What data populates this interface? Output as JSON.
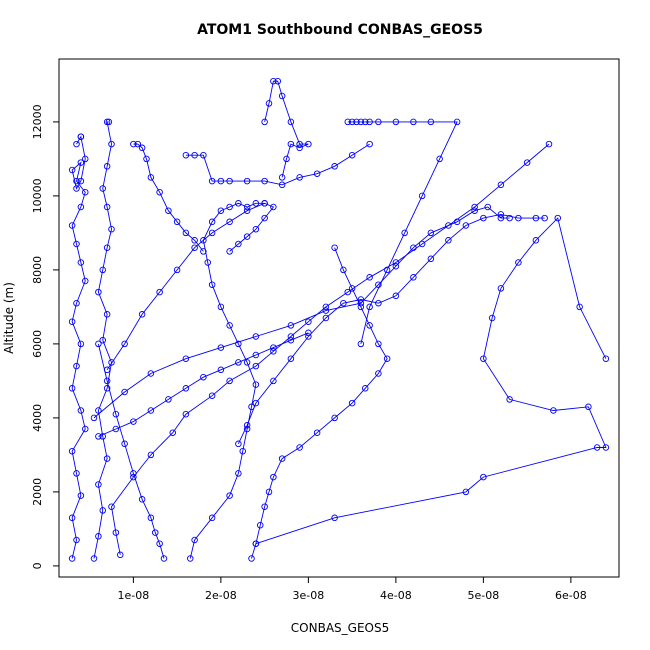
{
  "chart_data": {
    "type": "line",
    "title": "ATOM1 Southbound CONBAS_GEOS5",
    "xlabel": "CONBAS_GEOS5",
    "ylabel": "Altitude (m)",
    "xlim": [
      1.5e-09,
      6.55e-08
    ],
    "ylim": [
      -300,
      13700
    ],
    "x_ticks": [
      1e-08,
      2e-08,
      3e-08,
      4e-08,
      5e-08,
      6e-08
    ],
    "x_tick_labels": [
      "1e-08",
      "2e-08",
      "3e-08",
      "4e-08",
      "5e-08",
      "6e-08"
    ],
    "y_ticks": [
      0,
      2000,
      4000,
      6000,
      8000,
      10000,
      12000
    ],
    "y_tick_labels": [
      "0",
      "2000",
      "4000",
      "6000",
      "8000",
      "10000",
      "12000"
    ],
    "series_color": "#0000ff",
    "series": [
      {
        "x": [
          3e-09,
          3.5e-09,
          3e-09,
          4e-09,
          3.5e-09,
          3e-09,
          4.5e-09,
          4e-09,
          3e-09,
          3.5e-09,
          4e-09,
          3e-09,
          3.5e-09,
          4.5e-09,
          4e-09,
          3.5e-09,
          3e-09,
          4e-09,
          4.5e-09,
          3.5e-09,
          4e-09,
          3e-09,
          3.5e-09,
          4e-09,
          4.5e-09,
          4e-09,
          3.5e-09,
          4e-09
        ],
        "y": [
          200,
          700,
          1300,
          1900,
          2500,
          3100,
          3700,
          4200,
          4800,
          5400,
          6000,
          6600,
          7100,
          7700,
          8200,
          8700,
          9200,
          9700,
          10100,
          10400,
          10900,
          10700,
          10200,
          10400,
          11000,
          11600,
          11400,
          11600
        ]
      },
      {
        "x": [
          5.5e-09,
          6e-09,
          6.5e-09,
          6e-09,
          7e-09,
          6.5e-09,
          6e-09,
          7e-09,
          7.5e-09,
          6.5e-09,
          7e-09,
          6e-09,
          6.5e-09,
          7e-09,
          7.5e-09,
          7e-09,
          6.5e-09,
          7e-09,
          7.5e-09,
          7e-09,
          7.2e-09
        ],
        "y": [
          200,
          800,
          1500,
          2200,
          2900,
          3500,
          4200,
          4800,
          5500,
          6100,
          6800,
          7400,
          8000,
          8600,
          9100,
          9700,
          10200,
          10800,
          11400,
          12000,
          12000
        ]
      },
      {
        "x": [
          8.5e-09,
          8e-09,
          7.5e-09,
          1e-08,
          1.2e-08,
          1.45e-08,
          1.6e-08,
          1.9e-08,
          2.1e-08,
          2.4e-08,
          2.6e-08,
          2.8e-08,
          3e-08,
          3.2e-08,
          3.45e-08,
          3.7e-08,
          4e-08,
          4.3e-08,
          4.6e-08,
          4.9e-08,
          5.2e-08,
          5.5e-08,
          5.75e-08
        ],
        "y": [
          300,
          900,
          1600,
          2400,
          3000,
          3600,
          4100,
          4600,
          5000,
          5400,
          5800,
          6200,
          6600,
          7000,
          7400,
          7800,
          8200,
          8700,
          9200,
          9700,
          10300,
          10900,
          11400
        ]
      },
      {
        "x": [
          1.35e-08,
          1.3e-08,
          1.25e-08,
          1.2e-08,
          1.1e-08,
          1e-08,
          9e-09,
          8e-09,
          7e-09,
          6e-09
        ],
        "y": [
          200,
          600,
          900,
          1300,
          1800,
          2500,
          3300,
          4100,
          5000,
          6000
        ]
      },
      {
        "x": [
          1.65e-08,
          1.7e-08,
          1.9e-08,
          2.1e-08,
          2.2e-08,
          2.25e-08,
          2.3e-08,
          2.35e-08,
          2.4e-08,
          2.3e-08,
          2.2e-08,
          2.1e-08,
          2e-08,
          1.9e-08,
          1.85e-08,
          1.8e-08,
          1.9e-08,
          2e-08,
          2.1e-08,
          2.2e-08,
          2.3e-08,
          2.4e-08,
          2.5e-08,
          2.6e-08,
          2.5e-08,
          2.4e-08,
          2.3e-08,
          2.2e-08,
          2.1e-08
        ],
        "y": [
          200,
          700,
          1300,
          1900,
          2500,
          3100,
          3700,
          4300,
          4900,
          5500,
          6000,
          6500,
          7000,
          7600,
          8200,
          8800,
          9300,
          9600,
          9700,
          9800,
          9700,
          9800,
          9800,
          9700,
          9400,
          9100,
          8900,
          8700,
          8500
        ]
      },
      {
        "x": [
          2.35e-08,
          2.4e-08,
          2.45e-08,
          2.5e-08,
          2.55e-08,
          2.6e-08,
          2.7e-08,
          2.9e-08,
          3.1e-08,
          3.3e-08,
          3.5e-08,
          3.65e-08,
          3.8e-08,
          3.9e-08,
          3.8e-08,
          3.7e-08,
          3.6e-08,
          3.5e-08,
          3.4e-08,
          3.3e-08
        ],
        "y": [
          200,
          600,
          1100,
          1600,
          2000,
          2400,
          2900,
          3200,
          3600,
          4000,
          4400,
          4800,
          5200,
          5600,
          6000,
          6500,
          7000,
          7500,
          8000,
          8600
        ]
      },
      {
        "x": [
          2.4e-08,
          3.3e-08,
          4.8e-08,
          5e-08,
          6.3e-08,
          6.4e-08,
          6.2e-08,
          5.8e-08,
          5.3e-08,
          5e-08,
          5.1e-08,
          5.2e-08,
          5.4e-08,
          5.6e-08,
          5.85e-08,
          6.1e-08,
          6.4e-08
        ],
        "y": [
          600,
          1300,
          2000,
          2400,
          3200,
          3200,
          4300,
          4200,
          4500,
          5600,
          6700,
          7500,
          8200,
          8800,
          9400,
          7000,
          5600
        ]
      },
      {
        "x": [
          2.2e-08,
          2.3e-08,
          2.4e-08,
          2.6e-08,
          2.8e-08,
          3e-08,
          3.2e-08,
          3.4e-08,
          3.6e-08,
          3.8e-08,
          4e-08,
          4.2e-08,
          4.4e-08,
          4.6e-08,
          4.8e-08,
          5e-08,
          5.2e-08,
          5.4e-08,
          5.6e-08,
          5.7e-08
        ],
        "y": [
          3300,
          3800,
          4400,
          5000,
          5600,
          6200,
          6700,
          7100,
          7200,
          7100,
          7300,
          7800,
          8300,
          8800,
          9200,
          9400,
          9500,
          9400,
          9400,
          9400
        ]
      },
      {
        "x": [
          2.5e-08,
          2.55e-08,
          2.6e-08,
          2.65e-08,
          2.7e-08,
          2.8e-08,
          2.9e-08,
          3e-08,
          2.9e-08,
          2.8e-08,
          2.75e-08,
          2.7e-08
        ],
        "y": [
          12000,
          12500,
          13100,
          13100,
          12700,
          12000,
          11400,
          11400,
          11300,
          11400,
          11000,
          10500
        ]
      },
      {
        "x": [
          3.45e-08,
          3.5e-08,
          3.55e-08,
          3.6e-08,
          3.65e-08,
          3.7e-08,
          3.8e-08,
          4e-08,
          4.2e-08,
          4.4e-08,
          4.7e-08,
          4.5e-08,
          4.3e-08,
          4.1e-08,
          3.9e-08,
          3.7e-08,
          3.6e-08
        ],
        "y": [
          12000,
          12000,
          12000,
          12000,
          12000,
          12000,
          12000,
          12000,
          12000,
          12000,
          12000,
          11000,
          10000,
          9000,
          8000,
          7000,
          6000
        ]
      },
      {
        "x": [
          1.6e-08,
          1.7e-08,
          1.8e-08,
          1.9e-08,
          2e-08,
          2.1e-08,
          2.3e-08,
          2.5e-08,
          2.7e-08,
          2.9e-08,
          3.1e-08,
          3.3e-08,
          3.5e-08,
          3.7e-08
        ],
        "y": [
          11100,
          11100,
          11100,
          10400,
          10400,
          10400,
          10400,
          10400,
          10300,
          10500,
          10600,
          10800,
          11100,
          11400
        ]
      },
      {
        "x": [
          1e-08,
          1.05e-08,
          1.1e-08,
          1.15e-08,
          1.2e-08,
          1.3e-08,
          1.4e-08,
          1.5e-08,
          1.6e-08,
          1.7e-08,
          1.8e-08
        ],
        "y": [
          11400,
          11400,
          11300,
          11000,
          10500,
          10100,
          9600,
          9300,
          9000,
          8800,
          8500
        ]
      },
      {
        "x": [
          5.5e-09,
          9e-09,
          1.2e-08,
          1.6e-08,
          2e-08,
          2.4e-08,
          2.8e-08,
          3.2e-08,
          3.6e-08,
          3.8e-08,
          4e-08,
          4.2e-08,
          4.4e-08,
          4.7e-08,
          4.9e-08,
          5.05e-08,
          5.2e-08,
          5.3e-08
        ],
        "y": [
          4000,
          4700,
          5200,
          5600,
          5900,
          6200,
          6500,
          6900,
          7100,
          7600,
          8100,
          8600,
          9000,
          9300,
          9600,
          9700,
          9400,
          9400
        ]
      },
      {
        "x": [
          7e-09,
          9e-09,
          1.1e-08,
          1.3e-08,
          1.5e-08,
          1.7e-08,
          1.9e-08,
          2.1e-08,
          2.3e-08,
          2.5e-08
        ],
        "y": [
          5300,
          6000,
          6800,
          7400,
          8000,
          8600,
          9000,
          9300,
          9600,
          9800
        ]
      },
      {
        "x": [
          6e-09,
          8e-09,
          1e-08,
          1.2e-08,
          1.4e-08,
          1.6e-08,
          1.8e-08,
          2e-08,
          2.2e-08,
          2.4e-08,
          2.6e-08,
          2.8e-08,
          3e-08
        ],
        "y": [
          3500,
          3700,
          3900,
          4200,
          4500,
          4800,
          5100,
          5300,
          5500,
          5700,
          5900,
          6100,
          6300
        ]
      }
    ]
  }
}
